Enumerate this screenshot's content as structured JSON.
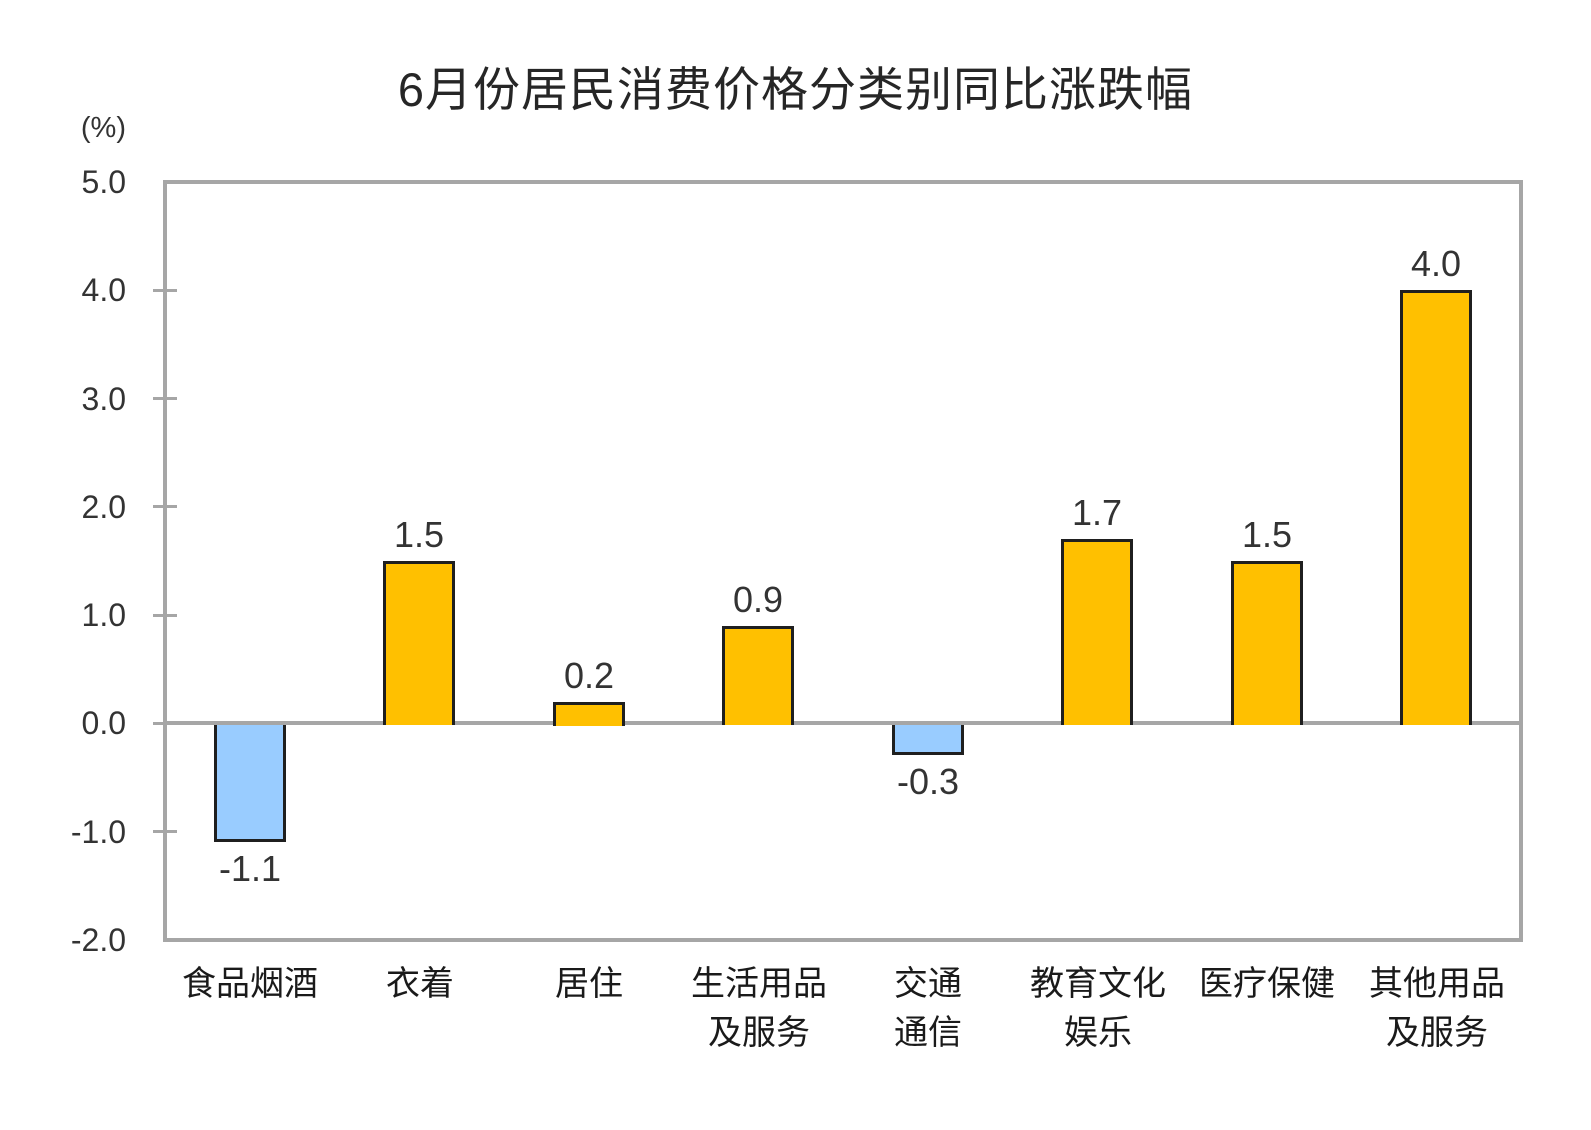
{
  "page": {
    "background": "#FFFFFF"
  },
  "chart_data": {
    "type": "bar",
    "title": "6月份居民消费价格分类别同比涨跌幅",
    "ylabel": "(%)",
    "xlabel": "",
    "categories": [
      "食品烟酒",
      "衣着",
      "居住",
      "生活用品\n及服务",
      "交通\n通信",
      "教育文化\n娱乐",
      "医疗保健",
      "其他用品\n及服务"
    ],
    "values": [
      -1.1,
      1.5,
      0.2,
      0.9,
      -0.3,
      1.7,
      1.5,
      4.0
    ],
    "value_labels": [
      "-1.1",
      "1.5",
      "0.2",
      "0.9",
      "-0.3",
      "1.7",
      "1.5",
      "4.0"
    ],
    "ylim": [
      -2.0,
      5.0
    ],
    "ytick_labels": [
      "5.0",
      "4.0",
      "3.0",
      "2.0",
      "1.0",
      "0.0",
      "-1.0",
      "-2.0"
    ],
    "ytick_values": [
      5.0,
      4.0,
      3.0,
      2.0,
      1.0,
      0.0,
      -1.0,
      -2.0
    ],
    "grid": false,
    "legend_position": "none",
    "colors": {
      "positive_bar": "#FFC000",
      "negative_bar": "#99CCFF",
      "bar_border": "#1F1F1F",
      "axis_frame": "#A6A6A6",
      "tick_text": "#333333",
      "value_text": "#333333",
      "category_text": "#1A1A1A",
      "title_text": "#262626"
    }
  }
}
